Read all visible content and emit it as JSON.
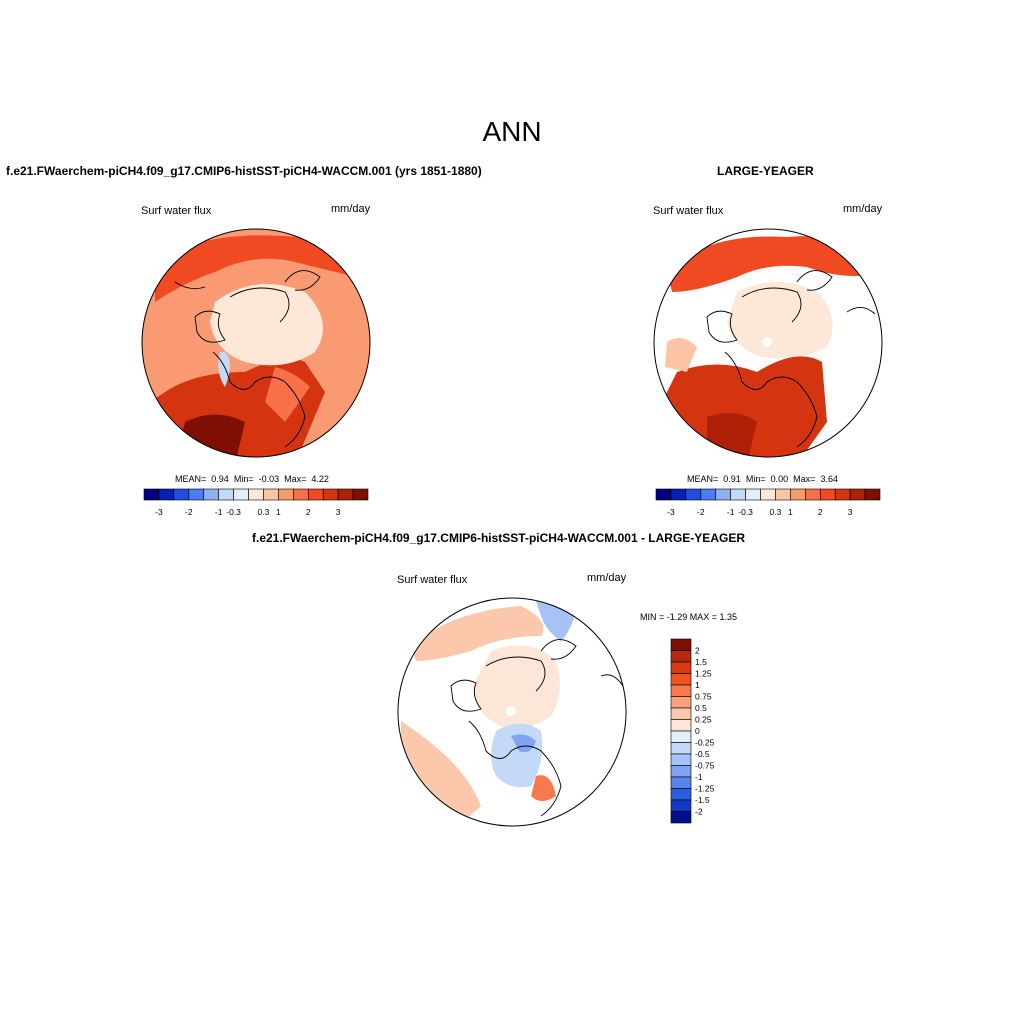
{
  "main_title": "ANN",
  "panels": [
    {
      "case_title": "f.e21.FWaerchem-piCH4.f09_g17.CMIP6-histSST-piCH4-WACCM.001 (yrs 1851-1880)",
      "variable": "Surf water flux",
      "units": "mm/day",
      "stats": {
        "mean_label": "MEAN=",
        "mean": "0.94",
        "min_label": "Min=",
        "min": "-0.03",
        "max_label": "Max=",
        "max": "4.22"
      },
      "colorbar_ticks": [
        "-3",
        "-2",
        "-1",
        "-0.3",
        "0.3",
        "1",
        "2",
        "3"
      ]
    },
    {
      "case_title": "LARGE-YEAGER",
      "variable": "Surf water flux",
      "units": "mm/day",
      "stats": {
        "mean_label": "MEAN=",
        "mean": "0.91",
        "min_label": "Min=",
        "min": "0.00",
        "max_label": "Max=",
        "max": "3.64"
      },
      "colorbar_ticks": [
        "-3",
        "-2",
        "-1",
        "-0.3",
        "0.3",
        "1",
        "2",
        "3"
      ]
    }
  ],
  "diff_panel": {
    "case_title": "f.e21.FWaerchem-piCH4.f09_g17.CMIP6-histSST-piCH4-WACCM.001 - LARGE-YEAGER",
    "variable": "Surf water flux",
    "units": "mm/day",
    "minmax": "MIN =  -1.29 MAX =   1.35",
    "colorbar_ticks": [
      "2",
      "1.5",
      "1.25",
      "1",
      "0.75",
      "0.5",
      "0.25",
      "0",
      "-0.25",
      "-0.5",
      "-0.75",
      "-1",
      "-1.25",
      "-1.5",
      "-2"
    ]
  },
  "colors": {
    "main_scale": [
      "#000080",
      "#0a1fb5",
      "#1e4fe0",
      "#4a7cf2",
      "#8fb0f5",
      "#c4d8f8",
      "#e5eefa",
      "#fde7d6",
      "#fbc4a4",
      "#f99a73",
      "#f7704a",
      "#f04a22",
      "#d53410",
      "#ae2008",
      "#7f0e04"
    ],
    "diff_scale": [
      "#7f0e04",
      "#b52a0c",
      "#d83a14",
      "#ef5222",
      "#f77a4c",
      "#f9a078",
      "#fbc8ab",
      "#fde6d8",
      "#e5eefa",
      "#c4d8f8",
      "#a6c2f6",
      "#7fa4f3",
      "#5585ec",
      "#2b5fe2",
      "#1438c4",
      "#000f8a"
    ],
    "land": "#ffffff",
    "coast": "#000000"
  }
}
